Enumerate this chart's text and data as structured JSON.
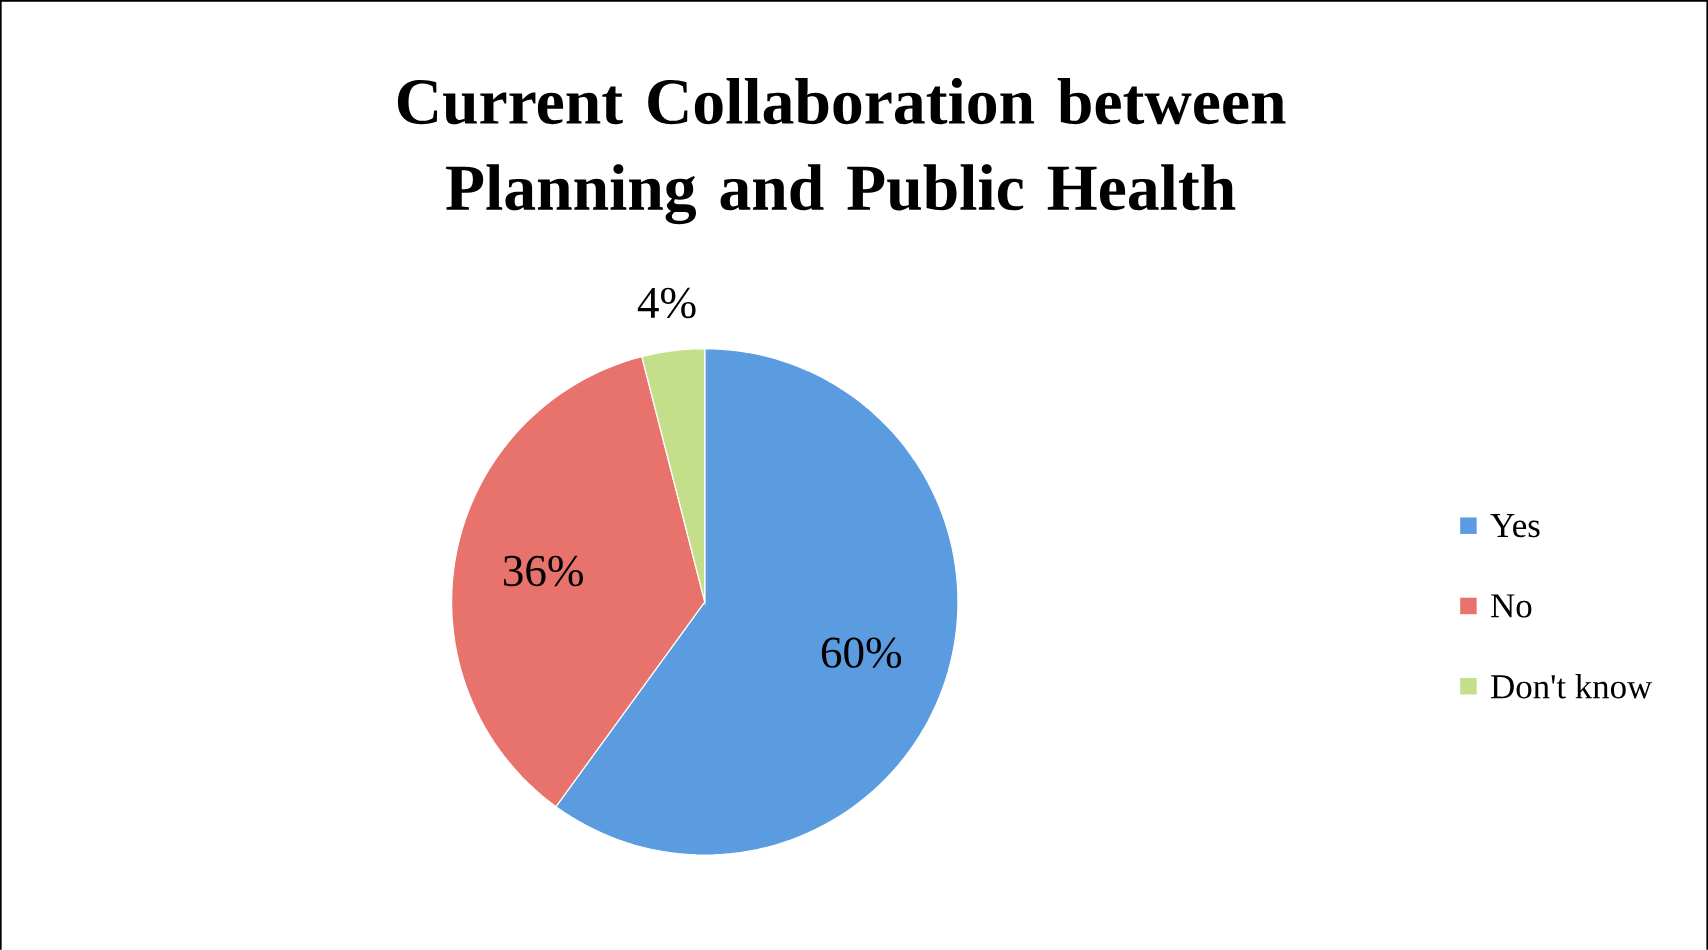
{
  "chart_data": {
    "type": "pie",
    "title": "Current Collaboration between Planning and Public Health",
    "categories": [
      "Yes",
      "No",
      "Don't know"
    ],
    "values": [
      60,
      36,
      4
    ],
    "value_labels": [
      "60%",
      "36%",
      "4%"
    ],
    "colors": [
      "#5b9be0",
      "#e8726c",
      "#c3df8a"
    ],
    "legend": "right"
  }
}
